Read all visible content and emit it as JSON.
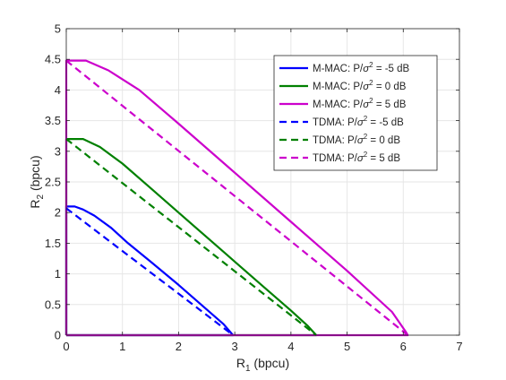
{
  "chart_data": {
    "type": "line",
    "xlabel": "R",
    "xlabel_sub": "1",
    "xlabel_unit": " (bpcu)",
    "ylabel": "R",
    "ylabel_sub": "2",
    "ylabel_unit": " (bpcu)",
    "xlim": [
      0,
      7
    ],
    "ylim": [
      0,
      5
    ],
    "xticks": [
      0,
      1,
      2,
      3,
      4,
      5,
      6,
      7
    ],
    "yticks": [
      0,
      0.5,
      1,
      1.5,
      2,
      2.5,
      3,
      3.5,
      4,
      4.5,
      5
    ],
    "xtick_labels": [
      "0",
      "1",
      "2",
      "3",
      "4",
      "5",
      "6",
      "7"
    ],
    "ytick_labels": [
      "0",
      "0.5",
      "1",
      "1.5",
      "2",
      "2.5",
      "3",
      "3.5",
      "4",
      "4.5",
      "5"
    ],
    "grid": true,
    "legend_position": "top-right",
    "series": [
      {
        "name_prefix": "M-MAC: P/",
        "name_suffix": " = -5 dB",
        "color": "#0000ff",
        "dash": "solid",
        "x": [
          0,
          0,
          0.15,
          0.3,
          0.5,
          0.8,
          1.1,
          1.5,
          2.0,
          2.5,
          2.8,
          2.95,
          2.97,
          0
        ],
        "y": [
          0,
          2.1,
          2.1,
          2.05,
          1.95,
          1.75,
          1.5,
          1.2,
          0.82,
          0.42,
          0.18,
          0.02,
          0,
          0
        ]
      },
      {
        "name_prefix": "M-MAC: P/",
        "name_suffix": " = 0 dB",
        "color": "#008000",
        "dash": "solid",
        "x": [
          0,
          0,
          0.3,
          0.6,
          1.0,
          1.5,
          2.0,
          2.5,
          3.0,
          3.5,
          4.0,
          4.3,
          4.42,
          4.45,
          0
        ],
        "y": [
          0,
          3.2,
          3.2,
          3.07,
          2.8,
          2.4,
          2.0,
          1.6,
          1.2,
          0.8,
          0.4,
          0.15,
          0.03,
          0,
          0
        ]
      },
      {
        "name_prefix": "M-MAC: P/",
        "name_suffix": " = 5 dB",
        "color": "#cc00cc",
        "dash": "solid",
        "x": [
          0,
          0,
          0.35,
          0.75,
          1.3,
          2.0,
          3.0,
          4.0,
          5.0,
          5.8,
          6.05,
          6.08,
          0
        ],
        "y": [
          0,
          4.48,
          4.48,
          4.32,
          4.0,
          3.45,
          2.65,
          1.85,
          1.05,
          0.38,
          0.05,
          0,
          0
        ]
      },
      {
        "name_prefix": "TDMA: P/",
        "name_suffix": " = -5 dB",
        "color": "#0000ff",
        "dash": "dashed",
        "x": [
          0,
          2.97
        ],
        "y": [
          2.07,
          0
        ]
      },
      {
        "name_prefix": "TDMA: P/",
        "name_suffix": " = 0 dB",
        "color": "#008000",
        "dash": "dashed",
        "x": [
          0,
          4.45
        ],
        "y": [
          3.2,
          0
        ]
      },
      {
        "name_prefix": "TDMA: P/",
        "name_suffix": " = 5 dB",
        "color": "#cc00cc",
        "dash": "dashed",
        "x": [
          0,
          6.08
        ],
        "y": [
          4.48,
          0
        ]
      }
    ]
  }
}
